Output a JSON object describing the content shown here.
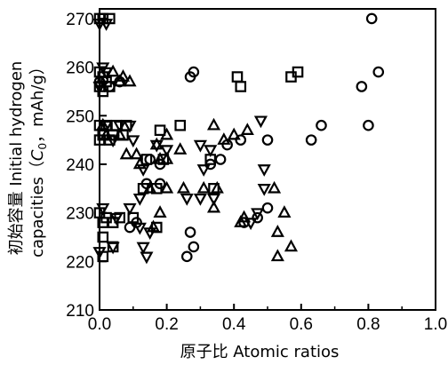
{
  "chart_data": {
    "type": "scatter",
    "xlabel": "原子比 Atomic ratios",
    "ylabel_line1": "初始容量 Initial hydrogen",
    "ylabel_line2_prefix": "capacities（",
    "ylabel_var": "C",
    "ylabel_sub": "0",
    "ylabel_line2_suffix": "，mAh/g）",
    "xlim": [
      0.0,
      1.0
    ],
    "ylim": [
      210,
      272
    ],
    "x_ticks": [
      "0.0",
      "0.2",
      "0.4",
      "0.6",
      "0.8",
      "1.0"
    ],
    "y_ticks": [
      "210",
      "220",
      "230",
      "240",
      "250",
      "260",
      "270"
    ],
    "grid": false,
    "series": [
      {
        "marker": "square",
        "points": [
          [
            0.0,
            270
          ],
          [
            0.01,
            270
          ],
          [
            0.03,
            270
          ],
          [
            0.0,
            259
          ],
          [
            0.01,
            258
          ],
          [
            0.02,
            257
          ],
          [
            0.0,
            256
          ],
          [
            0.03,
            256
          ],
          [
            0.01,
            255
          ],
          [
            0.0,
            248
          ],
          [
            0.02,
            248
          ],
          [
            0.05,
            248
          ],
          [
            0.08,
            248
          ],
          [
            0.01,
            246
          ],
          [
            0.04,
            246
          ],
          [
            0.07,
            246
          ],
          [
            0.0,
            245
          ],
          [
            0.03,
            245
          ],
          [
            0.18,
            247
          ],
          [
            0.24,
            248
          ],
          [
            0.14,
            241
          ],
          [
            0.19,
            241
          ],
          [
            0.17,
            235
          ],
          [
            0.13,
            235
          ],
          [
            0.0,
            230
          ],
          [
            0.02,
            229
          ],
          [
            0.06,
            229
          ],
          [
            0.01,
            228
          ],
          [
            0.04,
            228
          ],
          [
            0.1,
            229
          ],
          [
            0.17,
            227
          ],
          [
            0.01,
            225
          ],
          [
            0.04,
            223
          ],
          [
            0.01,
            221
          ],
          [
            0.34,
            235
          ],
          [
            0.33,
            241
          ],
          [
            0.41,
            258
          ],
          [
            0.42,
            256
          ],
          [
            0.57,
            258
          ],
          [
            0.59,
            259
          ]
        ]
      },
      {
        "marker": "circle",
        "points": [
          [
            0.0,
            257
          ],
          [
            0.06,
            257
          ],
          [
            0.03,
            256
          ],
          [
            0.28,
            259
          ],
          [
            0.27,
            258
          ],
          [
            0.81,
            270
          ],
          [
            0.83,
            259
          ],
          [
            0.78,
            256
          ],
          [
            0.8,
            248
          ],
          [
            0.66,
            248
          ],
          [
            0.63,
            245
          ],
          [
            0.42,
            245
          ],
          [
            0.38,
            244
          ],
          [
            0.5,
            245
          ],
          [
            0.15,
            241
          ],
          [
            0.18,
            240
          ],
          [
            0.33,
            240
          ],
          [
            0.36,
            241
          ],
          [
            0.14,
            236
          ],
          [
            0.18,
            236
          ],
          [
            0.09,
            227
          ],
          [
            0.11,
            228
          ],
          [
            0.27,
            226
          ],
          [
            0.28,
            223
          ],
          [
            0.26,
            221
          ],
          [
            0.5,
            231
          ],
          [
            0.47,
            229
          ],
          [
            0.43,
            228
          ]
        ]
      },
      {
        "marker": "triangle-up",
        "points": [
          [
            0.04,
            259
          ],
          [
            0.07,
            258
          ],
          [
            0.09,
            257
          ],
          [
            0.06,
            257
          ],
          [
            0.01,
            248
          ],
          [
            0.02,
            246
          ],
          [
            0.06,
            246
          ],
          [
            0.08,
            242
          ],
          [
            0.11,
            242
          ],
          [
            0.12,
            240
          ],
          [
            0.17,
            244
          ],
          [
            0.2,
            246
          ],
          [
            0.24,
            243
          ],
          [
            0.34,
            248
          ],
          [
            0.37,
            245
          ],
          [
            0.4,
            246
          ],
          [
            0.44,
            247
          ],
          [
            0.18,
            241
          ],
          [
            0.2,
            241
          ],
          [
            0.15,
            235
          ],
          [
            0.2,
            235
          ],
          [
            0.25,
            235
          ],
          [
            0.31,
            235
          ],
          [
            0.35,
            235
          ],
          [
            0.34,
            231
          ],
          [
            0.18,
            230
          ],
          [
            0.16,
            227
          ],
          [
            0.43,
            229
          ],
          [
            0.42,
            228
          ],
          [
            0.52,
            235
          ],
          [
            0.55,
            230
          ],
          [
            0.53,
            226
          ],
          [
            0.57,
            223
          ],
          [
            0.53,
            221
          ]
        ]
      },
      {
        "marker": "triangle-down",
        "points": [
          [
            0.0,
            269
          ],
          [
            0.02,
            269
          ],
          [
            0.01,
            260
          ],
          [
            0.02,
            259
          ],
          [
            0.0,
            256
          ],
          [
            0.02,
            248
          ],
          [
            0.06,
            248
          ],
          [
            0.09,
            248
          ],
          [
            0.04,
            245
          ],
          [
            0.1,
            245
          ],
          [
            0.17,
            244
          ],
          [
            0.2,
            243
          ],
          [
            0.3,
            244
          ],
          [
            0.13,
            239
          ],
          [
            0.31,
            239
          ],
          [
            0.33,
            243
          ],
          [
            0.48,
            249
          ],
          [
            0.49,
            239
          ],
          [
            0.12,
            233
          ],
          [
            0.09,
            231
          ],
          [
            0.12,
            227
          ],
          [
            0.15,
            226
          ],
          [
            0.13,
            223
          ],
          [
            0.14,
            221
          ],
          [
            0.26,
            233
          ],
          [
            0.3,
            233
          ],
          [
            0.34,
            233
          ],
          [
            0.49,
            235
          ],
          [
            0.47,
            230
          ],
          [
            0.45,
            228
          ],
          [
            0.01,
            231
          ],
          [
            0.05,
            229
          ],
          [
            0.04,
            223
          ],
          [
            0.0,
            222
          ]
        ]
      }
    ]
  }
}
